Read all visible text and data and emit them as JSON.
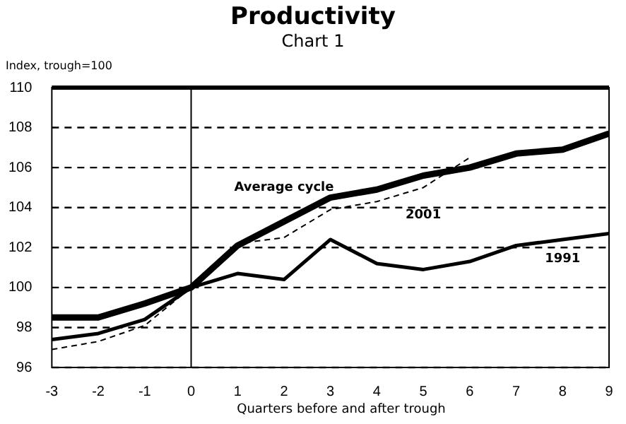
{
  "chart_data": {
    "type": "line",
    "title": "Productivity",
    "subtitle": "Chart 1",
    "ylabel": "Index, trough=100",
    "xlabel": "Quarters before and after trough",
    "x": [
      -3,
      -2,
      -1,
      0,
      1,
      2,
      3,
      4,
      5,
      6,
      7,
      8,
      9
    ],
    "xlim": [
      -3,
      9
    ],
    "xticks": [
      -3,
      -2,
      -1,
      0,
      1,
      2,
      3,
      4,
      5,
      6,
      7,
      8,
      9
    ],
    "ylim": [
      96,
      110
    ],
    "yticks": [
      96,
      98,
      100,
      102,
      104,
      106,
      108,
      110
    ],
    "grid": "y",
    "legend": false,
    "marker": "none",
    "ref_lines": [
      {
        "axis": "x",
        "value": 0,
        "color": "#000000"
      }
    ],
    "series": [
      {
        "name": "Average cycle",
        "color": "#000000",
        "values": [
          98.5,
          98.5,
          99.2,
          100,
          102.1,
          103.3,
          104.5,
          104.9,
          105.6,
          106,
          106.7,
          106.9,
          107.7
        ]
      },
      {
        "name": "2001",
        "color": "#000000",
        "line_style": "dashed",
        "values": [
          96.9,
          97.3,
          98.1,
          100,
          102.2,
          102.5,
          103.9,
          104.3,
          105.0,
          106.5,
          null,
          null,
          null
        ]
      },
      {
        "name": "1991",
        "color": "#000000",
        "values": [
          97.4,
          97.7,
          98.4,
          100,
          100.7,
          100.4,
          102.4,
          101.2,
          100.9,
          101.3,
          102.1,
          102.4,
          102.7
        ]
      }
    ]
  }
}
